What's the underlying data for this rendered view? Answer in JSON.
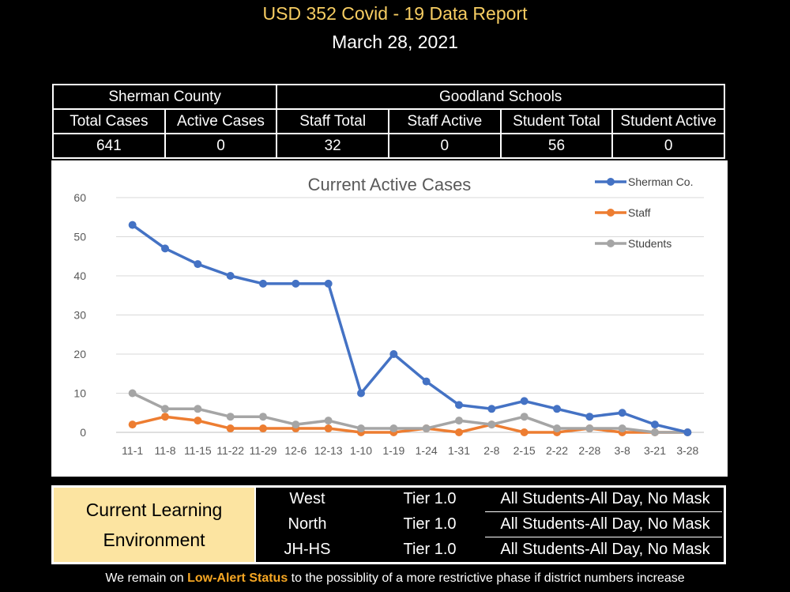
{
  "header": {
    "title": "USD 352 Covid - 19 Data Report",
    "date": "March 28, 2021"
  },
  "stats": {
    "group1": "Sherman County",
    "group2": "Goodland Schools",
    "columns": [
      "Total Cases",
      "Active Cases",
      "Staff Total",
      "Staff Active",
      "Student Total",
      "Student Active"
    ],
    "values": [
      "641",
      "0",
      "32",
      "0",
      "56",
      "0"
    ]
  },
  "chart_data": {
    "type": "line",
    "title": "Current Active Cases",
    "xlabel": "",
    "ylabel": "",
    "ylim": [
      0,
      60
    ],
    "yticks": [
      0,
      10,
      20,
      30,
      40,
      50,
      60
    ],
    "grid": true,
    "legend_position": "top-right",
    "categories": [
      "11-1",
      "11-8",
      "11-15",
      "11-22",
      "11-29",
      "12-6",
      "12-13",
      "1-10",
      "1-19",
      "1-24",
      "1-31",
      "2-8",
      "2-15",
      "2-22",
      "2-28",
      "3-8",
      "3-21",
      "3-28"
    ],
    "series": [
      {
        "name": "Sherman Co.",
        "color": "#4472c4",
        "values": [
          53,
          47,
          43,
          40,
          38,
          38,
          38,
          10,
          20,
          13,
          7,
          6,
          8,
          6,
          4,
          5,
          2,
          0
        ]
      },
      {
        "name": "Staff",
        "color": "#ed7d31",
        "values": [
          2,
          4,
          3,
          1,
          1,
          1,
          1,
          0,
          0,
          1,
          0,
          2,
          0,
          0,
          1,
          0,
          0,
          0
        ]
      },
      {
        "name": "Students",
        "color": "#a5a5a5",
        "values": [
          10,
          6,
          6,
          4,
          4,
          2,
          3,
          1,
          1,
          1,
          3,
          2,
          4,
          1,
          1,
          1,
          0,
          0
        ]
      }
    ]
  },
  "environment": {
    "label_line1": "Current Learning",
    "label_line2": "Environment",
    "rows": [
      {
        "school": "West",
        "tier": "Tier 1.0",
        "status": "All Students-All Day, No Mask"
      },
      {
        "school": "North",
        "tier": "Tier 1.0",
        "status": "All Students-All Day, No Mask"
      },
      {
        "school": "JH-HS",
        "tier": "Tier 1.0",
        "status": "All Students-All Day, No Mask"
      }
    ]
  },
  "footer": {
    "before": "We remain on ",
    "highlight": "Low-Alert Status",
    "after": " to the possiblity of a more restrictive phase if district numbers increase"
  }
}
